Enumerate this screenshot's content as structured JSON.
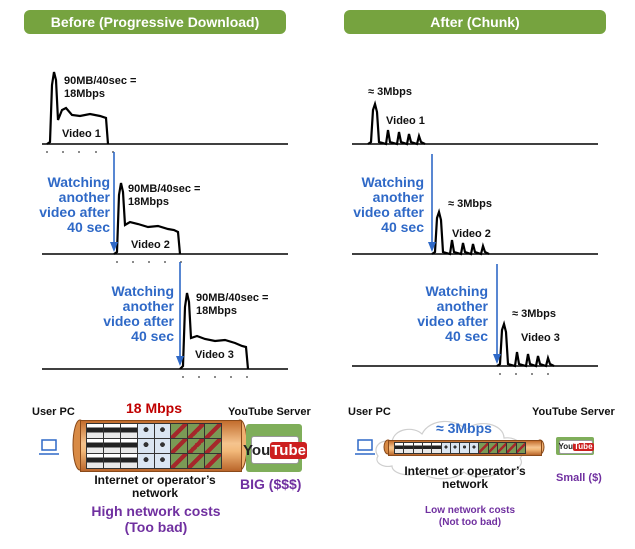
{
  "headers": {
    "before": "Before (Progressive Download)",
    "after": "After (Chunk)"
  },
  "before": {
    "plots": [
      {
        "rate": "90MB/40sec =\n18Mbps",
        "video": "Video 1"
      },
      {
        "rate": "90MB/40sec =\n18Mbps",
        "video": "Video 2"
      },
      {
        "rate": "90MB/40sec =\n18Mbps",
        "video": "Video 3"
      }
    ],
    "watching": "Watching\nanother\nvideo after\n40 sec",
    "speed": "18 Mbps",
    "user_pc": "User PC",
    "server": "YouTube Server",
    "network": "Internet or operator’s\nnetwork",
    "size": "BIG ($$$)",
    "cost": "High network costs\n(Too bad)"
  },
  "after": {
    "plots": [
      {
        "rate": "≈ 3Mbps",
        "video": "Video 1"
      },
      {
        "rate": "≈ 3Mbps",
        "video": "Video 2"
      },
      {
        "rate": "≈ 3Mbps",
        "video": "Video 3"
      }
    ],
    "watching": "Watching\nanother\nvideo after\n40 sec",
    "speed": "≈ 3Mbps",
    "user_pc": "User PC",
    "server": "YouTube Server",
    "network": "Internet or operator’s\nnetwork",
    "size": "Small ($)",
    "cost": "Low network costs\n(Not too bad)"
  },
  "logo": {
    "you": "You",
    "tube": "Tube"
  },
  "colors": {
    "header": "#76a33f",
    "blue_text": "#2f69c7",
    "purple_text": "#7030a0",
    "red_text": "#c00000",
    "pipe": "#e8a061"
  }
}
